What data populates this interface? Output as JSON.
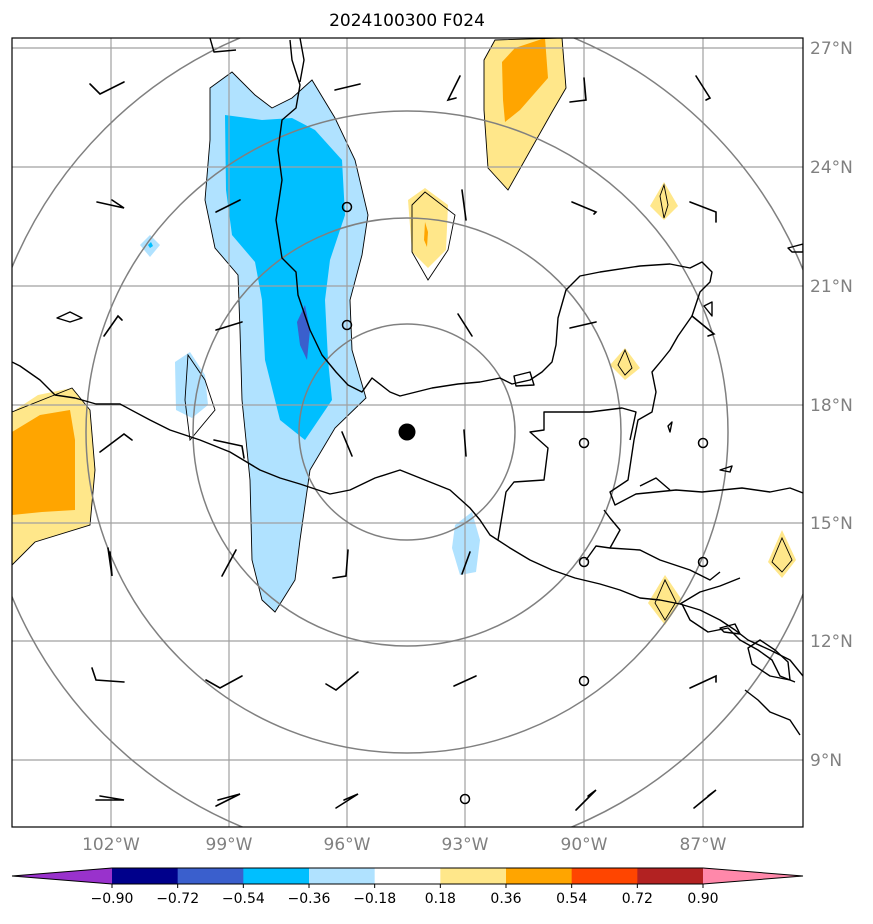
{
  "title": "2024100300 F024",
  "lon_labels": [
    "102°W",
    "99°W",
    "96°W",
    "93°W",
    "90°W",
    "87°W"
  ],
  "lat_labels": [
    "27°N",
    "24°N",
    "21°N",
    "18°N",
    "15°N",
    "12°N",
    "9°N"
  ],
  "colorbar": {
    "tick_labels": [
      "−0.90",
      "−0.72",
      "−0.54",
      "−0.36",
      "−0.18",
      "0.18",
      "0.36",
      "0.54",
      "0.72",
      "0.90"
    ],
    "colors": [
      "#9932cc",
      "#00008b",
      "#3a5fcd",
      "#00bfff",
      "#b0e2ff",
      "#ffffff",
      "#ffe78a",
      "#ffa500",
      "#ff4500",
      "#b22222",
      "#ff88aa"
    ]
  },
  "colors": {
    "grid": "#a0a0a0",
    "range_rings": "#808080",
    "coastline": "#000000",
    "center_marker": "#000000"
  }
}
